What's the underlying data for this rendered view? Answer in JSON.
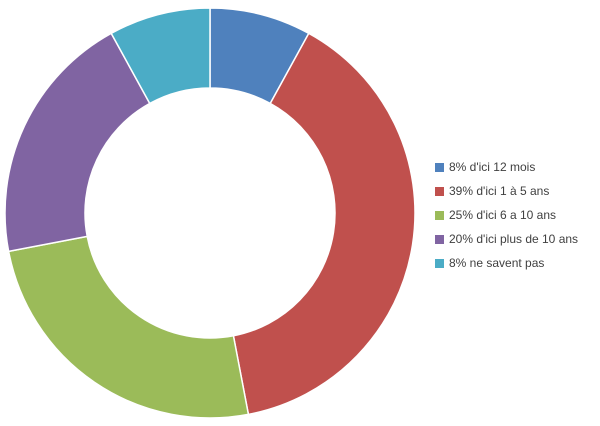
{
  "chart_data": {
    "type": "pie",
    "variant": "donut",
    "title": "",
    "categories": [
      "d'ici 12 mois",
      "d'ici 1 à 5 ans",
      "d'ici 6 a 10 ans",
      "d'ici plus de 10 ans",
      "ne savent pas"
    ],
    "values": [
      8,
      39,
      25,
      20,
      8
    ],
    "unit": "%",
    "colors": [
      "#4f81bd",
      "#c0504d",
      "#9bbb59",
      "#8064a2",
      "#4bacc6"
    ],
    "legend_position": "right",
    "legend": [
      {
        "label": "8% d'ici 12 mois",
        "color": "#4f81bd"
      },
      {
        "label": "39% d'ici 1 à 5 ans",
        "color": "#c0504d"
      },
      {
        "label": "25% d'ici 6 a 10 ans",
        "color": "#9bbb59"
      },
      {
        "label": "20% d'ici plus de 10 ans",
        "color": "#8064a2"
      },
      {
        "label": "8% ne savent pas",
        "color": "#4bacc6"
      }
    ]
  }
}
